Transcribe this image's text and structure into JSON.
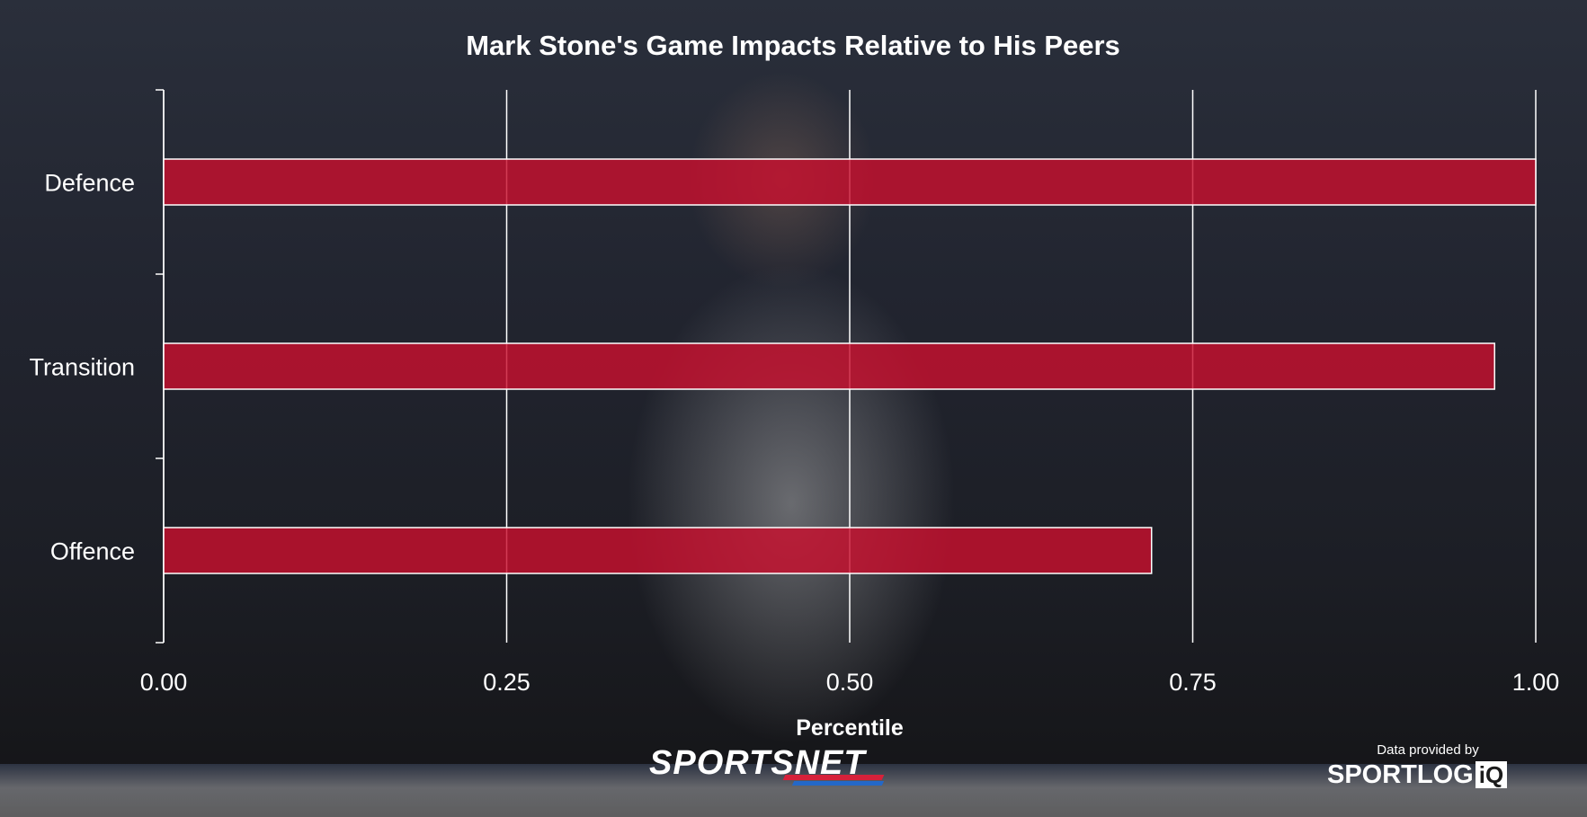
{
  "chart_data": {
    "type": "bar",
    "orientation": "horizontal",
    "title": "Mark Stone's Game Impacts Relative to His Peers",
    "categories": [
      "Defence",
      "Transition",
      "Offence"
    ],
    "values": [
      1.0,
      0.97,
      0.72
    ],
    "xlabel": "Percentile",
    "ylabel": "",
    "xlim": [
      0,
      1
    ],
    "xticks": [
      "0.00",
      "0.25",
      "0.50",
      "0.75",
      "1.00"
    ],
    "grid": "vertical",
    "bar_color": "#c8102e"
  },
  "branding": {
    "sportsnet_logo": "SPORTSNET",
    "credit_caption": "Data provided by",
    "sportlogiq_logo": "SPORTLOG",
    "sportlogiq_iq": "iQ"
  }
}
